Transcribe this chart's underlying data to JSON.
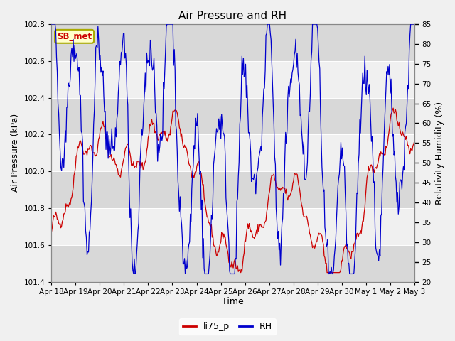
{
  "title": "Air Pressure and RH",
  "xlabel": "Time",
  "ylabel_left": "Air Pressure (kPa)",
  "ylabel_right": "Relativity Humidity (%)",
  "legend_label1": "li75_p",
  "legend_label2": "RH",
  "station_label": "SB_met",
  "ylim_left": [
    101.4,
    102.8
  ],
  "ylim_right": [
    20,
    85
  ],
  "yticks_left": [
    101.4,
    101.6,
    101.8,
    102.0,
    102.2,
    102.4,
    102.6,
    102.8
  ],
  "yticks_right": [
    20,
    25,
    30,
    35,
    40,
    45,
    50,
    55,
    60,
    65,
    70,
    75,
    80,
    85
  ],
  "x_tick_labels": [
    "Apr 18",
    "Apr 19",
    "Apr 20",
    "Apr 21",
    "Apr 22",
    "Apr 23",
    "Apr 24",
    "Apr 25",
    "Apr 26",
    "Apr 27",
    "Apr 28",
    "Apr 29",
    "Apr 30",
    "May 1",
    "May 2",
    "May 3"
  ],
  "color_pressure": "#cc0000",
  "color_rh": "#0000cc",
  "background_color": "#f0f0f0",
  "plot_bg_color": "#e8e8e8",
  "band_color_light": "#f0f0f0",
  "band_color_dark": "#d8d8d8",
  "title_fontsize": 11,
  "axis_fontsize": 9,
  "tick_fontsize": 7.5,
  "station_box_color": "#ffffcc",
  "station_box_edgecolor": "#aaaa00",
  "station_text_color": "#cc0000",
  "legend_fontsize": 9
}
